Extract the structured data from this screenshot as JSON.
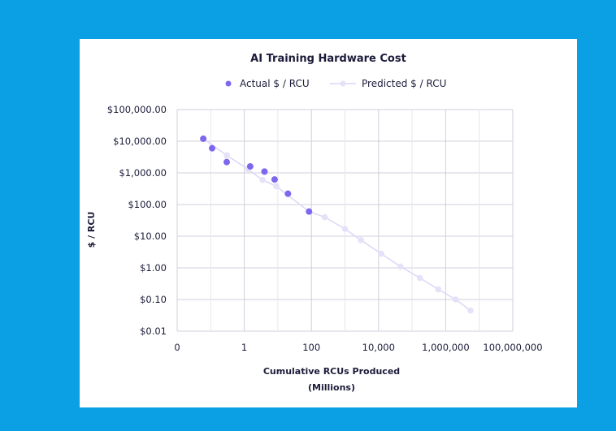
{
  "chart_data": {
    "type": "scatter",
    "title": "AI Training Hardware Cost",
    "xlabel": "Cumulative RCUs Produced",
    "xlabel_sub": "(Millions)",
    "ylabel": "$ / RCU",
    "x_scale": "log",
    "y_scale": "log",
    "xlim": [
      0.01,
      100000000
    ],
    "ylim": [
      0.01,
      100000
    ],
    "x_ticks": [
      {
        "value": 0.01,
        "label": "0"
      },
      {
        "value": 1,
        "label": "1"
      },
      {
        "value": 100,
        "label": "100"
      },
      {
        "value": 10000,
        "label": "10,000"
      },
      {
        "value": 1000000,
        "label": "1,000,000"
      },
      {
        "value": 100000000,
        "label": "100,000,000"
      }
    ],
    "y_ticks": [
      {
        "value": 100000,
        "label": "$100,000.00"
      },
      {
        "value": 10000,
        "label": "$10,000.00"
      },
      {
        "value": 1000,
        "label": "$1,000.00"
      },
      {
        "value": 100,
        "label": "$100.00"
      },
      {
        "value": 10,
        "label": "$10.00"
      },
      {
        "value": 1,
        "label": "$1.00"
      },
      {
        "value": 0.1,
        "label": "$0.10"
      },
      {
        "value": 0.01,
        "label": "$0.01"
      }
    ],
    "grid": true,
    "legend_position": "top",
    "series": [
      {
        "name": "Actual $ / RCU",
        "kind": "scatter",
        "color": "#7b68ee",
        "points": [
          {
            "x": 0.06,
            "y": 12000
          },
          {
            "x": 0.11,
            "y": 6000
          },
          {
            "x": 0.3,
            "y": 2200
          },
          {
            "x": 1.5,
            "y": 1600
          },
          {
            "x": 4,
            "y": 1100
          },
          {
            "x": 8,
            "y": 620
          },
          {
            "x": 20,
            "y": 220
          },
          {
            "x": 85,
            "y": 60
          }
        ]
      },
      {
        "name": "Predicted $ / RCU",
        "kind": "line",
        "color": "#dcd6f7",
        "points": [
          {
            "x": 0.06,
            "y": 12000
          },
          {
            "x": 0.3,
            "y": 3600
          },
          {
            "x": 1.3,
            "y": 1300
          },
          {
            "x": 3.5,
            "y": 600
          },
          {
            "x": 9,
            "y": 380
          },
          {
            "x": 85,
            "y": 60
          },
          {
            "x": 250,
            "y": 40
          },
          {
            "x": 1000,
            "y": 17
          },
          {
            "x": 3000,
            "y": 7.5
          },
          {
            "x": 12000,
            "y": 2.8
          },
          {
            "x": 45000,
            "y": 1.1
          },
          {
            "x": 170000,
            "y": 0.48
          },
          {
            "x": 600000,
            "y": 0.21
          },
          {
            "x": 2000000,
            "y": 0.1
          },
          {
            "x": 5500000,
            "y": 0.045
          }
        ]
      }
    ]
  }
}
